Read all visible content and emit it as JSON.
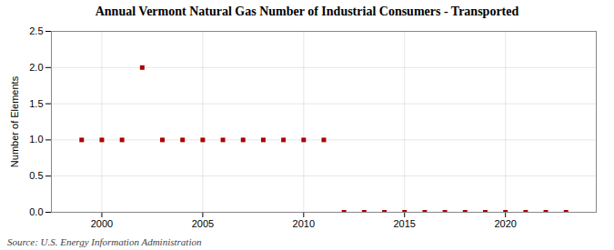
{
  "chart_data": {
    "type": "scatter",
    "title": "Annual Vermont Natural Gas Number of Industrial Consumers - Transported",
    "ylabel": "Number of Elements",
    "caption": "Source: U.S. Energy Information Administration",
    "x": [
      1999,
      2000,
      2001,
      2002,
      2003,
      2004,
      2005,
      2006,
      2007,
      2008,
      2009,
      2010,
      2011,
      2012,
      2013,
      2014,
      2015,
      2016,
      2017,
      2018,
      2019,
      2020,
      2021,
      2022,
      2023
    ],
    "values": [
      1,
      1,
      1,
      2,
      1,
      1,
      1,
      1,
      1,
      1,
      1,
      1,
      1,
      0,
      0,
      0,
      0,
      0,
      0,
      0,
      0,
      0,
      0,
      0,
      0
    ],
    "color": "#aa0000",
    "marker": "square",
    "xlim": [
      1997.5,
      2024.5
    ],
    "ylim": [
      0.0,
      2.5
    ],
    "xticks": [
      2000,
      2005,
      2010,
      2015,
      2020
    ],
    "yticks": [
      {
        "value": 0,
        "label": "0.0"
      },
      0.5,
      {
        "value": 1,
        "label": "1.0"
      },
      1.5,
      {
        "value": 2,
        "label": "2.0"
      },
      2.5
    ],
    "grid": true
  }
}
